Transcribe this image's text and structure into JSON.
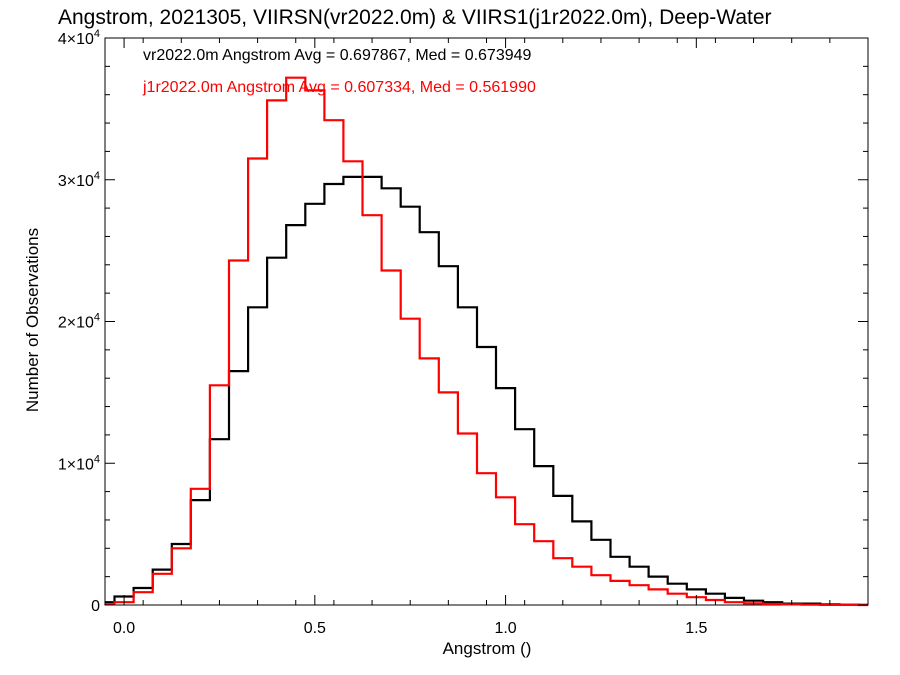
{
  "chart_data": {
    "type": "line",
    "title": "Angstrom, 2021305, VIIRSN(vr2022.0m) & VIIRS1(j1r2022.0m), Deep-Water",
    "xlabel": "Angstrom ()",
    "ylabel": "Number of Observations",
    "xlim": [
      -0.05,
      1.95
    ],
    "ylim": [
      0,
      40000
    ],
    "x_ticks": [
      {
        "value": 0.0,
        "label": "0.0"
      },
      {
        "value": 0.5,
        "label": "0.5"
      },
      {
        "value": 1.0,
        "label": "1.0"
      },
      {
        "value": 1.5,
        "label": "1.5"
      }
    ],
    "y_ticks": [
      {
        "value": 0,
        "mantissa": "0",
        "exponent": ""
      },
      {
        "value": 10000,
        "mantissa": "1×10",
        "exponent": "4"
      },
      {
        "value": 20000,
        "mantissa": "2×10",
        "exponent": "4"
      },
      {
        "value": 30000,
        "mantissa": "3×10",
        "exponent": "4"
      },
      {
        "value": 40000,
        "mantissa": "4×10",
        "exponent": "4"
      }
    ],
    "grid": false,
    "legend_position": "top-left",
    "series": [
      {
        "name": "vr2022.0m Angstrom Avg = 0.697867, Med = 0.673949",
        "color": "#000000",
        "x": [
          -0.05,
          0.0,
          0.05,
          0.1,
          0.15,
          0.2,
          0.25,
          0.3,
          0.35,
          0.4,
          0.45,
          0.5,
          0.55,
          0.6,
          0.65,
          0.7,
          0.75,
          0.8,
          0.85,
          0.9,
          0.95,
          1.0,
          1.05,
          1.1,
          1.15,
          1.2,
          1.25,
          1.3,
          1.35,
          1.4,
          1.45,
          1.5,
          1.55,
          1.6,
          1.65,
          1.7,
          1.75,
          1.8,
          1.85,
          1.9,
          1.95
        ],
        "values": [
          200,
          600,
          1200,
          2500,
          4300,
          7400,
          11700,
          16500,
          21000,
          24500,
          26800,
          28300,
          29700,
          30200,
          30200,
          29400,
          28100,
          26300,
          23900,
          21000,
          18200,
          15300,
          12400,
          9800,
          7700,
          5900,
          4600,
          3400,
          2700,
          2000,
          1500,
          1100,
          800,
          500,
          300,
          200,
          100,
          100,
          50,
          20,
          10
        ]
      },
      {
        "name": "j1r2022.0m Angstrom Avg = 0.607334, Med = 0.561990",
        "color": "#ff0000",
        "x": [
          -0.05,
          0.0,
          0.05,
          0.1,
          0.15,
          0.2,
          0.25,
          0.3,
          0.35,
          0.4,
          0.45,
          0.5,
          0.55,
          0.6,
          0.65,
          0.7,
          0.75,
          0.8,
          0.85,
          0.9,
          0.95,
          1.0,
          1.05,
          1.1,
          1.15,
          1.2,
          1.25,
          1.3,
          1.35,
          1.4,
          1.45,
          1.5,
          1.55,
          1.6,
          1.65,
          1.7,
          1.75,
          1.8,
          1.85,
          1.9,
          1.95
        ],
        "values": [
          50,
          200,
          900,
          2200,
          4000,
          8200,
          15500,
          24300,
          31500,
          35600,
          37200,
          36300,
          34200,
          31300,
          27500,
          23600,
          20200,
          17400,
          15000,
          12100,
          9300,
          7600,
          5700,
          4500,
          3300,
          2700,
          2100,
          1700,
          1400,
          1100,
          800,
          550,
          350,
          200,
          120,
          70,
          40,
          20,
          10,
          5,
          0
        ]
      }
    ]
  }
}
